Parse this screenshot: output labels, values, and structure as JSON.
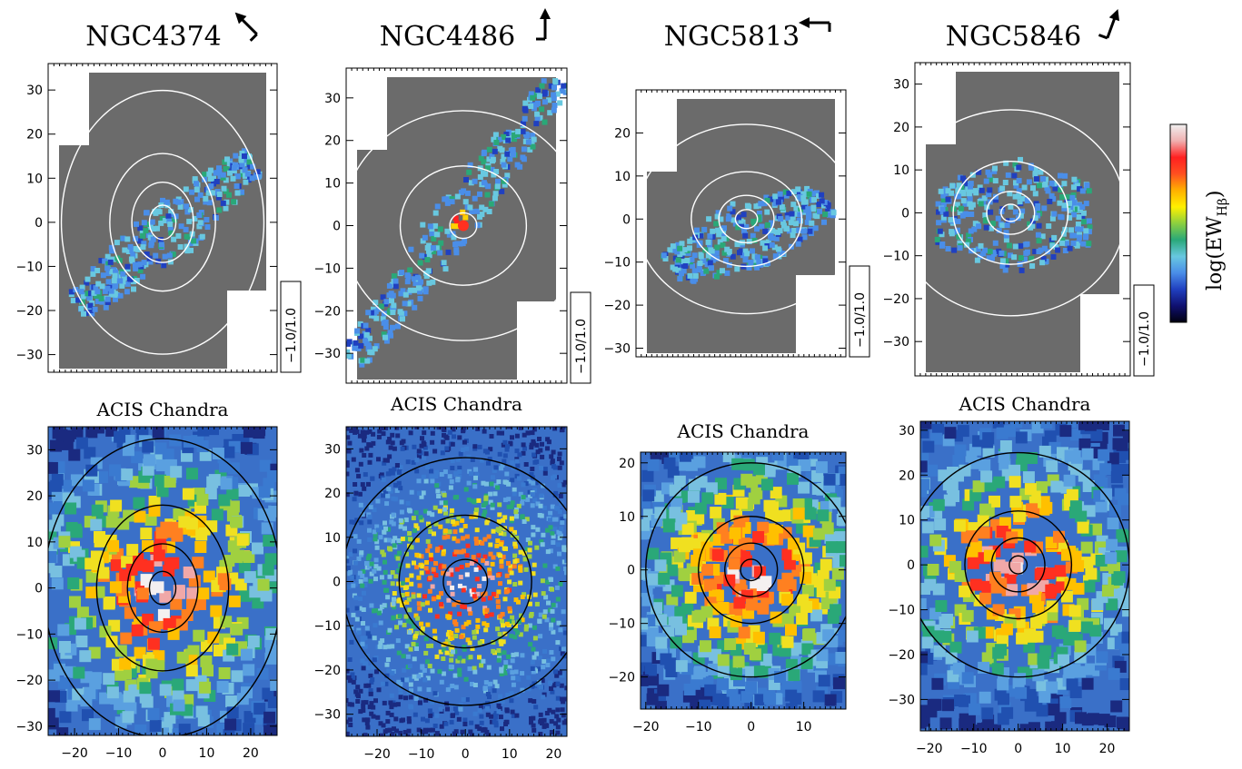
{
  "figure": {
    "colorbar_label": "log(EW",
    "colorbar_sub": "Hβ",
    "colorbar_close": ")",
    "colorbar_colors": [
      "#000010",
      "#101070",
      "#2040c0",
      "#4a8ee8",
      "#68c8e0",
      "#2aa878",
      "#8cd040",
      "#fff000",
      "#ffb000",
      "#ff5020",
      "#ff2020",
      "#f0b0b0",
      "#f0f0f0"
    ]
  },
  "chart_data": [
    {
      "type": "heatmap",
      "panel": "NGC4374-Hbeta",
      "title": "NGC4374",
      "xlim": [
        -26,
        26
      ],
      "ylim": [
        -34,
        36
      ],
      "yticks": [
        -30,
        -20,
        -10,
        0,
        10,
        20,
        30
      ],
      "range_label": "−1.0/1.0",
      "contour_radii": [
        3,
        7,
        12,
        23
      ],
      "contour_elongation": 1.3,
      "emission": {
        "x0": 0,
        "y0": -2,
        "angle": 40,
        "half_length": 26,
        "half_width": 7,
        "peak": "#4a8ee8"
      }
    },
    {
      "type": "heatmap",
      "panel": "NGC4486-Hbeta",
      "title": "NGC4486",
      "xlim": [
        -26,
        23
      ],
      "ylim": [
        -37,
        37
      ],
      "yticks": [
        -30,
        -20,
        -10,
        0,
        10,
        20,
        30
      ],
      "range_label": "−1.0/1.0",
      "contour_radii": [
        3,
        14,
        27
      ],
      "contour_elongation": 1.0,
      "emission": {
        "x0": -2,
        "y0": 2,
        "angle": 55,
        "half_length": 40,
        "half_width": 6,
        "peak": "#ff2020"
      }
    },
    {
      "type": "heatmap",
      "panel": "NGC5813-Hbeta",
      "title": "NGC5813",
      "xlim": [
        -20,
        18
      ],
      "ylim": [
        -32,
        30
      ],
      "yticks": [
        -30,
        -20,
        -10,
        0,
        10,
        20
      ],
      "range_label": "−1.0/1.0",
      "contour_radii": [
        2,
        5,
        10,
        20
      ],
      "contour_elongation": 1.1,
      "emission": {
        "x0": 0,
        "y0": -3,
        "angle": 30,
        "half_length": 16,
        "half_width": 8,
        "peak": "#68c8e0"
      }
    },
    {
      "type": "heatmap",
      "panel": "NGC5846-Hbeta",
      "title": "NGC5846",
      "xlim": [
        -20,
        25
      ],
      "ylim": [
        -38,
        35
      ],
      "yticks": [
        -30,
        -20,
        -10,
        0,
        10,
        20,
        30
      ],
      "range_label": "−1.0/1.0",
      "contour_radii": [
        2,
        5,
        12,
        24
      ],
      "contour_elongation": 1.0,
      "emission": {
        "x0": 0,
        "y0": 0,
        "angle": 0,
        "half_length": 16,
        "half_width": 14,
        "peak": "#68c8e0"
      }
    },
    {
      "type": "heatmap",
      "panel": "NGC4374-Chandra",
      "title": "ACIS Chandra",
      "xlim": [
        -26,
        26
      ],
      "ylim": [
        -32,
        35
      ],
      "xticks": [
        -20,
        -10,
        0,
        10,
        20
      ],
      "yticks": [
        -30,
        -20,
        -10,
        0,
        10,
        20,
        30
      ],
      "contour_radii": [
        3,
        8,
        15,
        27
      ],
      "contour_elongation": 1.2,
      "core_radius": 12
    },
    {
      "type": "heatmap",
      "panel": "NGC4486-Chandra",
      "title": "ACIS Chandra",
      "xlim": [
        -27,
        23
      ],
      "ylim": [
        -35,
        35
      ],
      "xticks": [
        -20,
        -10,
        0,
        10,
        20
      ],
      "yticks": [
        -30,
        -20,
        -10,
        0,
        10,
        20,
        30
      ],
      "contour_radii": [
        5,
        15,
        28
      ],
      "contour_elongation": 1.0,
      "core_radius": 10
    },
    {
      "type": "heatmap",
      "panel": "NGC5813-Chandra",
      "title": "ACIS Chandra",
      "xlim": [
        -21,
        18
      ],
      "ylim": [
        -26,
        22
      ],
      "xticks": [
        -20,
        -10,
        0,
        10
      ],
      "yticks": [
        -20,
        -10,
        0,
        10,
        20
      ],
      "contour_radii": [
        2,
        5,
        10,
        20
      ],
      "contour_elongation": 1.0,
      "core_radius": 9
    },
    {
      "type": "heatmap",
      "panel": "NGC5846-Chandra",
      "title": "ACIS Chandra",
      "xlim": [
        -22,
        25
      ],
      "ylim": [
        -37,
        32
      ],
      "xticks": [
        -20,
        -10,
        0,
        10,
        20
      ],
      "yticks": [
        -30,
        -20,
        -10,
        0,
        10,
        20,
        30
      ],
      "contour_radii": [
        2,
        6,
        12,
        25
      ],
      "contour_elongation": 1.0,
      "core_radius": 11
    }
  ]
}
